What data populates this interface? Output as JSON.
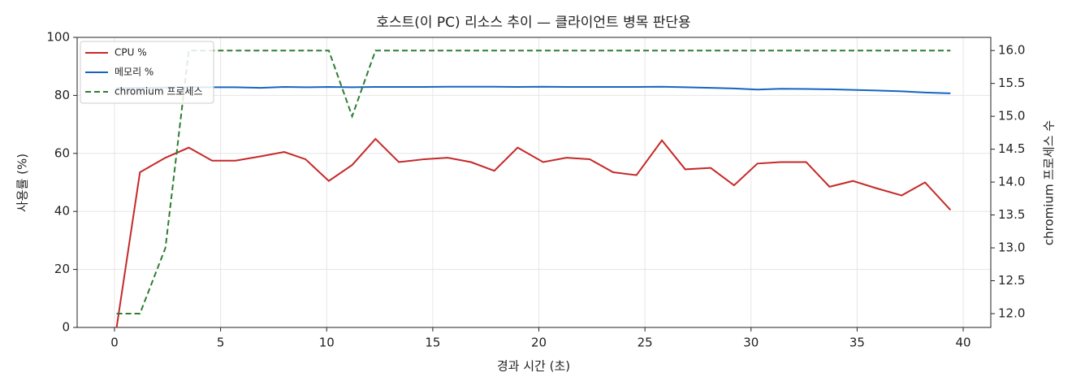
{
  "chart_data": {
    "type": "line",
    "title": "호스트(이 PC) 리소스 추이 — 클라이언트 병목 판단용",
    "xlabel": "경과 시간 (초)",
    "ylabel": "사용률 (%)",
    "y2label": "chromium 프로세스 수",
    "x": [
      0.1,
      1.2,
      2.4,
      3.5,
      4.6,
      5.7,
      6.9,
      8.0,
      9.0,
      10.1,
      11.2,
      12.3,
      13.4,
      14.6,
      15.7,
      16.8,
      17.9,
      19.0,
      20.2,
      21.3,
      22.4,
      23.5,
      24.6,
      25.8,
      26.9,
      28.1,
      29.2,
      30.3,
      31.4,
      32.6,
      33.7,
      34.8,
      35.9,
      37.1,
      38.2,
      39.4
    ],
    "series": [
      {
        "name": "CPU %",
        "color": "#c62828",
        "linestyle": "solid",
        "axis": "y",
        "values": [
          0,
          53.5,
          58.5,
          62,
          57.5,
          57.5,
          59,
          60.5,
          58,
          50.5,
          56,
          65,
          57,
          58,
          58.5,
          57,
          54,
          62,
          57,
          58.5,
          58,
          53.5,
          52.5,
          64.5,
          54.5,
          55,
          49,
          56.5,
          57,
          57,
          48.5,
          50.5,
          48,
          45.5,
          50,
          40.5
        ]
      },
      {
        "name": "메모리 %",
        "color": "#1565c0",
        "linestyle": "solid",
        "axis": "y",
        "values": [
          82.5,
          82.6,
          82.7,
          82.8,
          82.8,
          82.8,
          82.6,
          82.9,
          82.8,
          82.9,
          82.8,
          82.9,
          82.9,
          82.9,
          83.0,
          83.0,
          83.0,
          82.9,
          83.0,
          82.9,
          82.9,
          82.9,
          82.9,
          83.0,
          82.8,
          82.6,
          82.4,
          82.0,
          82.3,
          82.2,
          82.1,
          81.9,
          81.7,
          81.4,
          81.0,
          80.7
        ]
      },
      {
        "name": "chromium 프로세스",
        "color": "#2e7d32",
        "linestyle": "dashed",
        "axis": "y2",
        "values": [
          12,
          12,
          13,
          16,
          16,
          16,
          16,
          16,
          16,
          16,
          15,
          16,
          16,
          16,
          16,
          16,
          16,
          16,
          16,
          16,
          16,
          16,
          16,
          16,
          16,
          16,
          16,
          16,
          16,
          16,
          16,
          16,
          16,
          16,
          16,
          16
        ]
      }
    ],
    "xlim": [
      -1.76,
      41.3
    ],
    "xticks": [
      0,
      5,
      10,
      15,
      20,
      25,
      30,
      35,
      40
    ],
    "ylim": [
      0,
      100
    ],
    "yticks": [
      0,
      20,
      40,
      60,
      80,
      100
    ],
    "y2lim": [
      11.79,
      16.2
    ],
    "y2ticks": [
      {
        "value": 12,
        "label": "12.0"
      },
      {
        "value": 12.5,
        "label": "12.5"
      },
      {
        "value": 13,
        "label": "13.0"
      },
      {
        "value": 13.5,
        "label": "13.5"
      },
      {
        "value": 14,
        "label": "14.0"
      },
      {
        "value": 14.5,
        "label": "14.5"
      },
      {
        "value": 15,
        "label": "15.0"
      },
      {
        "value": 15.5,
        "label": "15.5"
      },
      {
        "value": 16,
        "label": "16.0"
      }
    ],
    "grid": true,
    "legend": "upper left"
  }
}
